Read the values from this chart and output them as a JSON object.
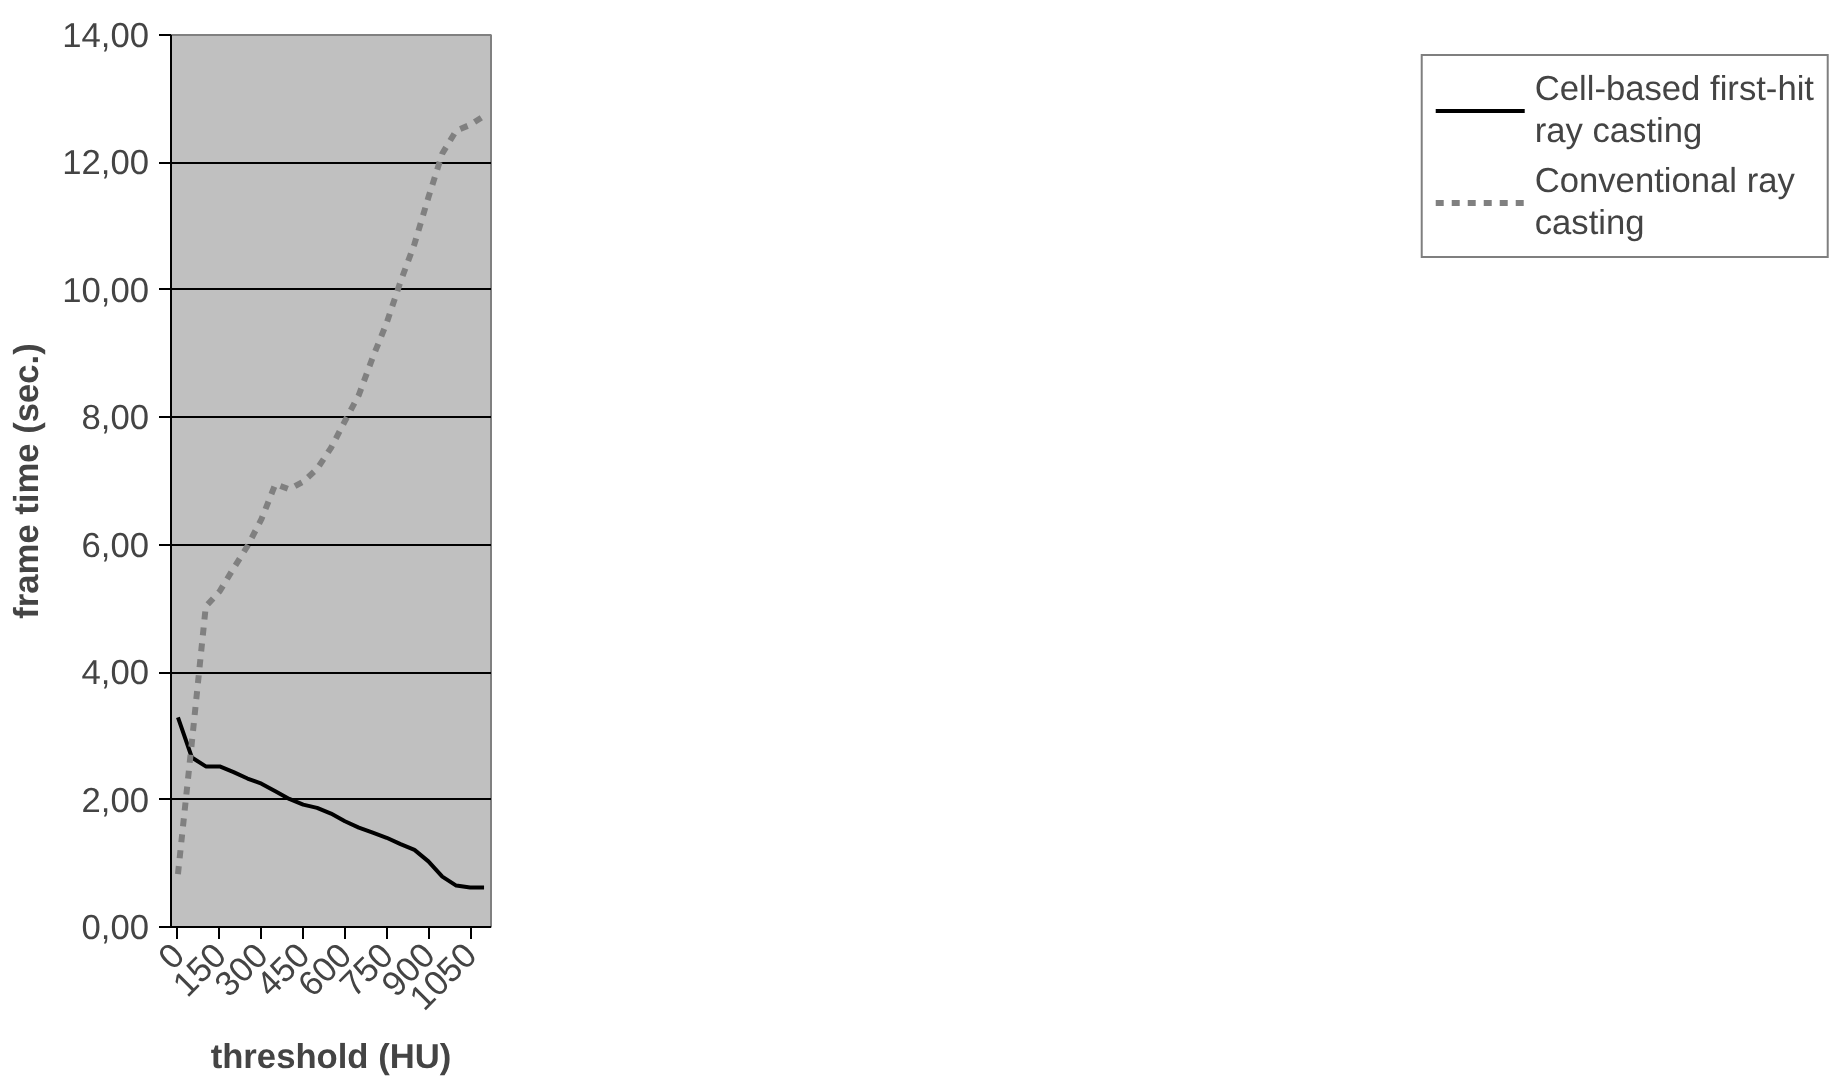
{
  "chart_data": {
    "type": "line",
    "xlabel": "threshold (HU)",
    "ylabel": "frame time (sec.)",
    "x": [
      0,
      50,
      100,
      150,
      200,
      250,
      300,
      350,
      400,
      450,
      500,
      550,
      600,
      650,
      700,
      750,
      800,
      850,
      900,
      950,
      1000,
      1050,
      1100
    ],
    "series": [
      {
        "name": "Cell-based first-hit ray casting",
        "color": "#000000",
        "line_style": "solid",
        "values": [
          3.29,
          2.66,
          2.52,
          2.52,
          2.43,
          2.33,
          2.25,
          2.13,
          2.01,
          1.92,
          1.87,
          1.78,
          1.66,
          1.56,
          1.48,
          1.4,
          1.3,
          1.21,
          1.03,
          0.79,
          0.65,
          0.62,
          0.62
        ]
      },
      {
        "name": "Conventional ray casting",
        "color": "#808080",
        "line_style": "dotted",
        "values": [
          0.83,
          2.9,
          5.03,
          5.27,
          5.63,
          5.98,
          6.4,
          6.95,
          6.87,
          6.99,
          7.19,
          7.52,
          7.94,
          8.35,
          8.94,
          9.48,
          10.13,
          10.72,
          11.45,
          12.14,
          12.5,
          12.59,
          12.73
        ]
      }
    ],
    "xlim": [
      -25,
      1125
    ],
    "xticks": [
      0,
      150,
      300,
      450,
      600,
      750,
      900,
      1050
    ],
    "ylim": [
      0,
      14
    ],
    "yticks": [
      {
        "value": 0,
        "label": "0,00"
      },
      {
        "value": 2,
        "label": "2,00"
      },
      {
        "value": 4,
        "label": "4,00"
      },
      {
        "value": 6,
        "label": "6,00"
      },
      {
        "value": 8,
        "label": "8,00"
      },
      {
        "value": 10,
        "label": "10,00"
      },
      {
        "value": 12,
        "label": "12,00"
      },
      {
        "value": 14,
        "label": "14,00"
      }
    ],
    "grid": "y",
    "legend": "right",
    "marker": "none"
  }
}
